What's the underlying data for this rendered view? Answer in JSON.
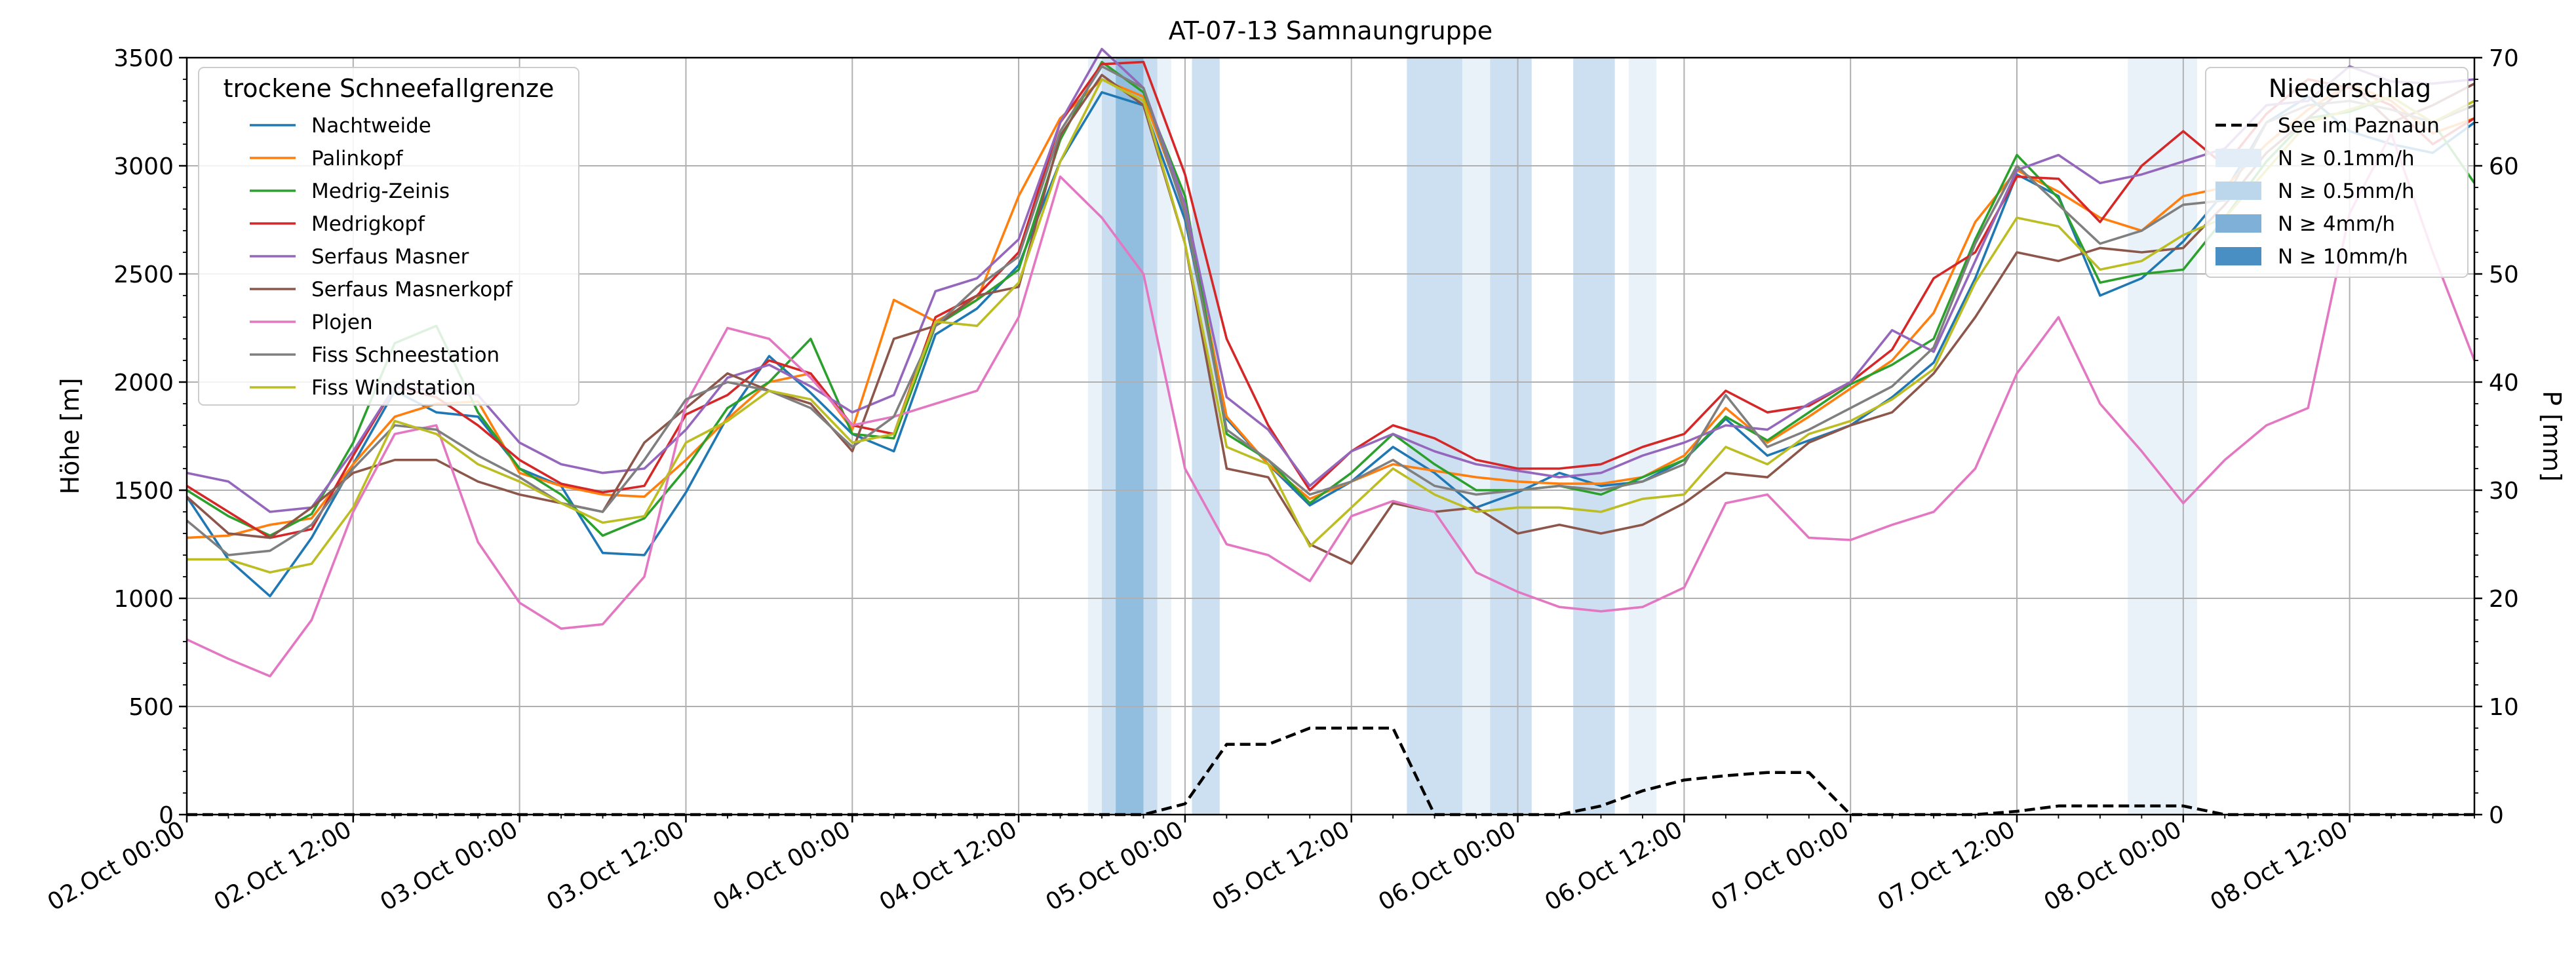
{
  "chart_data": {
    "type": "line",
    "title": "AT-07-13 Samnaungruppe",
    "ylabel": "Höhe [m]",
    "ylabel_right": "P [mm]",
    "ylim": [
      0,
      3500
    ],
    "ylim_right": [
      0,
      70
    ],
    "yticks": [
      "0",
      "500",
      "1000",
      "1500",
      "2000",
      "2500",
      "3000",
      "3500"
    ],
    "yticks_right": [
      "0",
      "10",
      "20",
      "30",
      "40",
      "50",
      "60",
      "70"
    ],
    "x_start": "02.Oct 00:00",
    "x_end": "08.Oct 21:00",
    "x_step_hours": 3,
    "xticks": [
      "02.Oct 00:00",
      "02.Oct 12:00",
      "03.Oct 00:00",
      "03.Oct 12:00",
      "04.Oct 00:00",
      "04.Oct 12:00",
      "05.Oct 00:00",
      "05.Oct 12:00",
      "06.Oct 00:00",
      "06.Oct 12:00",
      "07.Oct 00:00",
      "07.Oct 12:00",
      "08.Oct 00:00",
      "08.Oct 12:00"
    ],
    "grid": true,
    "legend_left": {
      "title": "trockene Schneefallgrenze",
      "placement": "top-left"
    },
    "legend_right": {
      "title": "Niederschlag",
      "placement": "top-right",
      "precip_label": "See im Paznaun",
      "bands": [
        {
          "label": "N ≥ 0.1mm/h",
          "color": "#e2edf7"
        },
        {
          "label": "N ≥ 0.5mm/h",
          "color": "#bcd6ec"
        },
        {
          "label": "N ≥ 4mm/h",
          "color": "#7fb1d8"
        },
        {
          "label": "N ≥ 10mm/h",
          "color": "#4a8fc4"
        }
      ]
    },
    "series": [
      {
        "name": "Nachtweide",
        "color": "#1f77b4",
        "values": [
          1470,
          1180,
          1010,
          1280,
          1620,
          1960,
          1860,
          1840,
          1600,
          1520,
          1210,
          1200,
          1490,
          1840,
          2120,
          1950,
          1760,
          1680,
          2220,
          2340,
          2540,
          3020,
          3340,
          3280,
          2750,
          1830,
          1620,
          1430,
          1540,
          1700,
          1580,
          1420,
          1490,
          1580,
          1520,
          1540,
          1640,
          1830,
          1660,
          1730,
          1800,
          1930,
          2090,
          2480,
          2960,
          2860,
          2400,
          2480,
          2650,
          2880,
          3200,
          3320,
          3160,
          3100,
          3060,
          3200
        ]
      },
      {
        "name": "Palinkopf",
        "color": "#ff7f0e",
        "values": [
          1280,
          1290,
          1340,
          1370,
          1620,
          1840,
          1900,
          1910,
          1580,
          1520,
          1480,
          1470,
          1640,
          1830,
          2000,
          2040,
          1780,
          2380,
          2280,
          2380,
          2860,
          3220,
          3400,
          3320,
          2800,
          1840,
          1620,
          1460,
          1540,
          1620,
          1590,
          1560,
          1540,
          1530,
          1530,
          1560,
          1660,
          1880,
          1720,
          1840,
          1970,
          2100,
          2320,
          2740,
          2980,
          2880,
          2760,
          2700,
          2860,
          2900,
          3100,
          3260,
          3380,
          3300,
          3150,
          3220
        ]
      },
      {
        "name": "Medrig-Zeinis",
        "color": "#2ca02c",
        "values": [
          1500,
          1380,
          1290,
          1390,
          1720,
          2180,
          2260,
          1860,
          1600,
          1480,
          1290,
          1370,
          1600,
          1880,
          2000,
          2200,
          1760,
          1740,
          2260,
          2380,
          2520,
          3120,
          3480,
          3340,
          2860,
          1760,
          1640,
          1440,
          1580,
          1760,
          1620,
          1500,
          1500,
          1520,
          1480,
          1560,
          1640,
          1840,
          1730,
          1860,
          1990,
          2080,
          2200,
          2660,
          3050,
          2850,
          2460,
          2500,
          2520,
          2760,
          3020,
          3220,
          3250,
          3320,
          3200,
          2920
        ]
      },
      {
        "name": "Medrigkopf",
        "color": "#d62728",
        "values": [
          1520,
          1400,
          1280,
          1320,
          1660,
          1980,
          1930,
          1800,
          1640,
          1530,
          1490,
          1520,
          1850,
          1940,
          2100,
          2040,
          1800,
          1760,
          2300,
          2400,
          2600,
          3200,
          3470,
          3480,
          2960,
          2200,
          1800,
          1500,
          1680,
          1800,
          1740,
          1640,
          1600,
          1600,
          1620,
          1700,
          1760,
          1960,
          1860,
          1890,
          2000,
          2150,
          2480,
          2600,
          2950,
          2940,
          2740,
          3000,
          3160,
          3000,
          3240,
          3400,
          3360,
          3280,
          3100,
          3220
        ]
      },
      {
        "name": "Serfaus Masner",
        "color": "#9467bd",
        "values": [
          1580,
          1540,
          1400,
          1420,
          1680,
          1980,
          1960,
          1940,
          1720,
          1620,
          1580,
          1600,
          1780,
          2020,
          2080,
          1980,
          1860,
          1940,
          2420,
          2480,
          2660,
          3200,
          3540,
          3360,
          2820,
          1930,
          1780,
          1520,
          1680,
          1760,
          1680,
          1620,
          1590,
          1560,
          1580,
          1660,
          1720,
          1800,
          1780,
          1900,
          2000,
          2240,
          2140,
          2560,
          2980,
          3050,
          2920,
          2960,
          3020,
          3080,
          3280,
          3300,
          3460,
          3390,
          3380,
          3400
        ]
      },
      {
        "name": "Serfaus Masnerkopf",
        "color": "#8c564b",
        "values": [
          1470,
          1300,
          1280,
          1420,
          1580,
          1640,
          1640,
          1540,
          1480,
          1440,
          1400,
          1720,
          1880,
          2040,
          1960,
          1900,
          1680,
          2200,
          2260,
          2400,
          2440,
          3140,
          3420,
          3280,
          2640,
          1600,
          1560,
          1250,
          1160,
          1440,
          1400,
          1420,
          1300,
          1340,
          1300,
          1340,
          1440,
          1580,
          1560,
          1720,
          1800,
          1860,
          2040,
          2300,
          2600,
          2560,
          2620,
          2600,
          2620,
          2820,
          3060,
          3220,
          3380,
          3200,
          3280,
          3380
        ]
      },
      {
        "name": "Plojen",
        "color": "#e377c2",
        "values": [
          810,
          720,
          640,
          900,
          1400,
          1760,
          1800,
          1260,
          980,
          860,
          880,
          1100,
          1900,
          2250,
          2200,
          2020,
          1800,
          1840,
          1900,
          1960,
          2300,
          2950,
          2760,
          2500,
          1600,
          1250,
          1200,
          1080,
          1380,
          1450,
          1400,
          1120,
          1030,
          960,
          940,
          960,
          1050,
          1440,
          1480,
          1280,
          1270,
          1340,
          1400,
          1600,
          2040,
          2300,
          1900,
          1680,
          1440,
          1640,
          1800,
          1880,
          2780,
          3150,
          2600,
          2100
        ]
      },
      {
        "name": "Fiss Schneestation",
        "color": "#7f7f7f",
        "values": [
          1360,
          1200,
          1220,
          1340,
          1600,
          1800,
          1780,
          1660,
          1560,
          1440,
          1400,
          1640,
          1920,
          2000,
          1960,
          1880,
          1700,
          1840,
          2260,
          2440,
          2580,
          3160,
          3460,
          3360,
          2780,
          1780,
          1640,
          1480,
          1540,
          1640,
          1520,
          1480,
          1500,
          1520,
          1500,
          1540,
          1620,
          1940,
          1700,
          1780,
          1880,
          1980,
          2160,
          2640,
          3000,
          2820,
          2640,
          2700,
          2820,
          2840,
          3200,
          3280,
          3300,
          3260,
          3200,
          3280
        ]
      },
      {
        "name": "Fiss Windstation",
        "color": "#bcbd22",
        "values": [
          1180,
          1180,
          1120,
          1160,
          1420,
          1820,
          1760,
          1620,
          1540,
          1440,
          1350,
          1380,
          1720,
          1820,
          1960,
          1920,
          1720,
          1760,
          2280,
          2260,
          2460,
          3020,
          3400,
          3300,
          2640,
          1700,
          1620,
          1240,
          1420,
          1600,
          1480,
          1400,
          1420,
          1420,
          1400,
          1460,
          1480,
          1700,
          1620,
          1760,
          1820,
          1920,
          2060,
          2460,
          2760,
          2720,
          2520,
          2560,
          2680,
          2760,
          2980,
          3200,
          3260,
          3320,
          3200,
          3300
        ]
      },
      {
        "name": "See im Paznaun",
        "color": "#000000",
        "axis": "right",
        "values": [
          0,
          0,
          0,
          0,
          0,
          0,
          0,
          0,
          0,
          0,
          0,
          0,
          0,
          0,
          0,
          0,
          0,
          0,
          0,
          0,
          0,
          0,
          0,
          0,
          1,
          6.5,
          6.5,
          8,
          8,
          8,
          0,
          0,
          0,
          0,
          0.8,
          2.2,
          3.2,
          3.6,
          3.9,
          3.9,
          0,
          0,
          0,
          0,
          0.3,
          0.8,
          0.8,
          0.8,
          0.8,
          0,
          0,
          0,
          0,
          0,
          0,
          0
        ]
      }
    ],
    "precip_bands": [
      {
        "start": 65.0,
        "end": 71.0,
        "level": 1
      },
      {
        "start": 66.0,
        "end": 70.0,
        "level": 2
      },
      {
        "start": 67.0,
        "end": 69.0,
        "level": 3
      },
      {
        "start": 72.5,
        "end": 74.5,
        "level": 2
      },
      {
        "start": 88.0,
        "end": 92.0,
        "level": 2
      },
      {
        "start": 92.0,
        "end": 94.0,
        "level": 1
      },
      {
        "start": 94.0,
        "end": 97.0,
        "level": 2
      },
      {
        "start": 100.0,
        "end": 103.0,
        "level": 2
      },
      {
        "start": 104.0,
        "end": 106.0,
        "level": 1
      },
      {
        "start": 140.0,
        "end": 145.0,
        "level": 1
      }
    ]
  }
}
